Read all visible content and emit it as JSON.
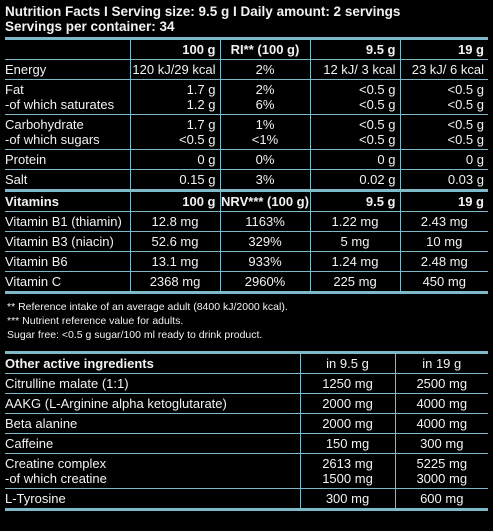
{
  "header": {
    "title_line": "Nutrition Facts I Serving size: 9.5 g I Daily amount: 2 servings",
    "servings_line": "Servings per container: 34"
  },
  "nutrition": {
    "columns": [
      "100 g",
      "RI** (100 g)",
      "9.5 g",
      "19 g"
    ],
    "rows": [
      {
        "label": [
          "Energy"
        ],
        "c1": [
          "120 kJ/29 kcal"
        ],
        "c2": [
          "2%"
        ],
        "c3": [
          "12 kJ/ 3 kcal"
        ],
        "c4": [
          "23 kJ/ 6 kcal"
        ]
      },
      {
        "label": [
          "Fat",
          "-of which saturates"
        ],
        "c1": [
          "1.7 g",
          "1.2 g"
        ],
        "c2": [
          "2%",
          "6%"
        ],
        "c3": [
          "<0.5 g",
          "<0.5 g"
        ],
        "c4": [
          "<0.5 g",
          "<0.5 g"
        ]
      },
      {
        "label": [
          "Carbohydrate",
          "-of which sugars"
        ],
        "c1": [
          "1.7 g",
          "<0.5 g"
        ],
        "c2": [
          "1%",
          "<1%"
        ],
        "c3": [
          "<0.5 g",
          "<0.5 g"
        ],
        "c4": [
          "<0.5 g",
          "<0.5 g"
        ]
      },
      {
        "label": [
          "Protein"
        ],
        "c1": [
          "0 g"
        ],
        "c2": [
          "0%"
        ],
        "c3": [
          "0 g"
        ],
        "c4": [
          "0 g"
        ]
      },
      {
        "label": [
          "Salt"
        ],
        "c1": [
          "0.15 g"
        ],
        "c2": [
          "3%"
        ],
        "c3": [
          "0.02 g"
        ],
        "c4": [
          "0.03 g"
        ]
      }
    ]
  },
  "vitamins": {
    "columns": [
      "Vitamins",
      "100 g",
      "NRV*** (100 g)",
      "9.5 g",
      "19 g"
    ],
    "rows": [
      {
        "label": "Vitamin B1 (thiamin)",
        "c1": "12.8 mg",
        "c2": "1163%",
        "c3": "1.22 mg",
        "c4": "2.43 mg"
      },
      {
        "label": "Vitamin B3 (niacin)",
        "c1": "52.6 mg",
        "c2": "329%",
        "c3": "5 mg",
        "c4": "10 mg"
      },
      {
        "label": "Vitamin B6",
        "c1": "13.1 mg",
        "c2": "933%",
        "c3": "1.24 mg",
        "c4": "2.48 mg"
      },
      {
        "label": "Vitamin C",
        "c1": "2368 mg",
        "c2": "2960%",
        "c3": "225 mg",
        "c4": "450 mg"
      }
    ]
  },
  "notes": [
    "** Reference intake of an average adult (8400 kJ/2000 kcal).",
    "*** Nutrient reference value for adults.",
    "Sugar free: <0.5 g sugar/100 ml ready to drink product."
  ],
  "other": {
    "columns": [
      "Other active ingredients",
      "in 9.5 g",
      "in 19 g"
    ],
    "rows": [
      {
        "label": [
          "Citrulline malate (1:1)"
        ],
        "c1": [
          "1250 mg"
        ],
        "c2": [
          "2500 mg"
        ]
      },
      {
        "label": [
          "AAKG (L-Arginine alpha ketoglutarate)"
        ],
        "c1": [
          "2000 mg"
        ],
        "c2": [
          "4000 mg"
        ]
      },
      {
        "label": [
          "Beta alanine"
        ],
        "c1": [
          "2000 mg"
        ],
        "c2": [
          "4000 mg"
        ]
      },
      {
        "label": [
          "Caffeine"
        ],
        "c1": [
          "150 mg"
        ],
        "c2": [
          "300 mg"
        ]
      },
      {
        "label": [
          "Creatine complex",
          "-of which creatine"
        ],
        "c1": [
          "2613 mg",
          "1500 mg"
        ],
        "c2": [
          "5225 mg",
          "3000 mg"
        ]
      },
      {
        "label": [
          "L-Tyrosine"
        ],
        "c1": [
          "300 mg"
        ],
        "c2": [
          "600 mg"
        ]
      }
    ]
  },
  "colors": {
    "background": "#000000",
    "text": "#f2f2f2",
    "rule": "#7db9c9"
  }
}
